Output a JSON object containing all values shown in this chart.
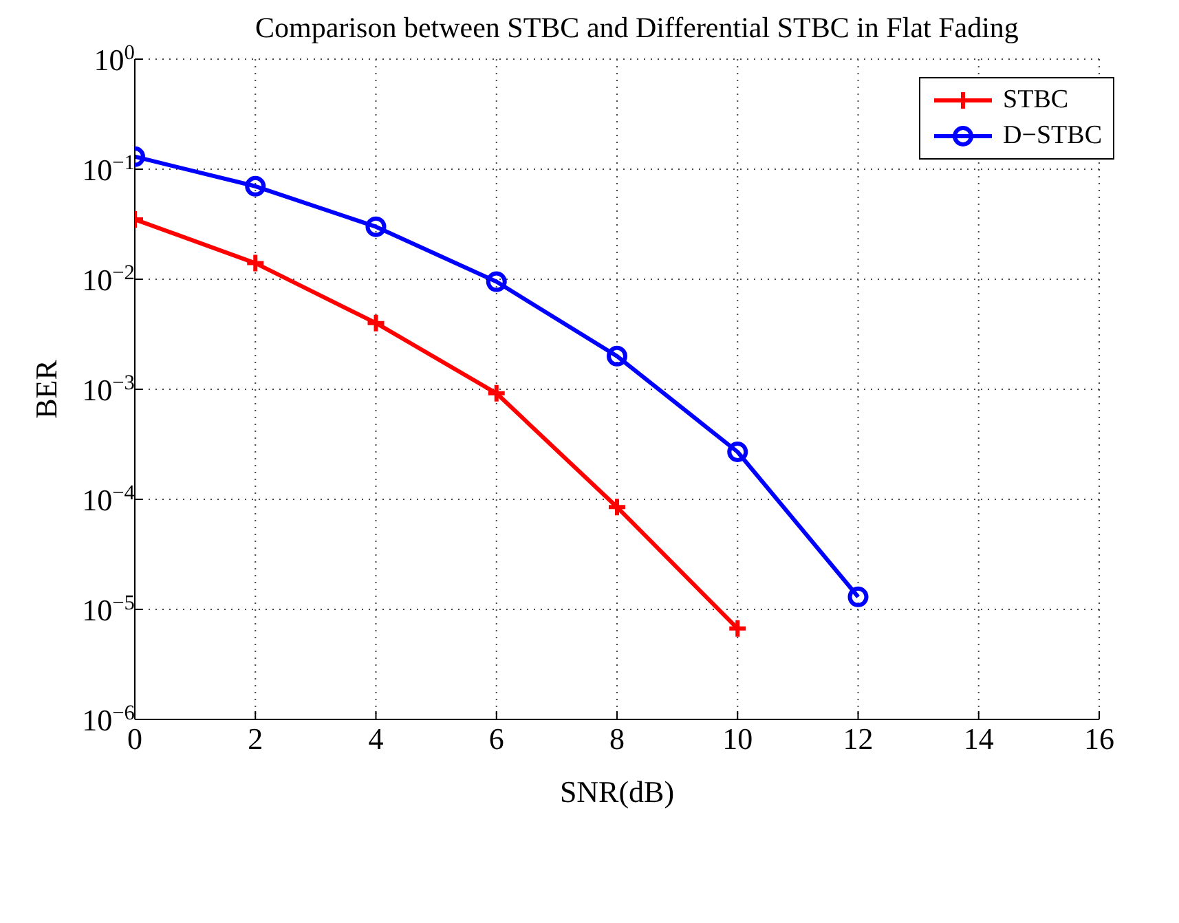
{
  "chart_data": {
    "type": "line",
    "title": "Comparison between STBC and Differential STBC in Flat Fading",
    "xlabel": "SNR(dB)",
    "ylabel": "BER",
    "x": [
      0,
      2,
      4,
      6,
      8,
      10,
      12
    ],
    "series": [
      {
        "name": "STBC",
        "color": "#ff0000",
        "marker": "cross",
        "values": [
          0.035,
          0.014,
          0.004,
          0.00092,
          8.5e-05,
          6.7e-06,
          null
        ]
      },
      {
        "name": "D−STBC",
        "color": "#0000ff",
        "marker": "circle",
        "values": [
          0.13,
          0.07,
          0.03,
          0.0095,
          0.002,
          0.00027,
          1.3e-05
        ]
      }
    ],
    "xlim": [
      0,
      16
    ],
    "xticks": [
      0,
      2,
      4,
      6,
      8,
      10,
      12,
      14,
      16
    ],
    "ylim": [
      1e-06,
      1
    ],
    "yticks": [
      {
        "value": 1e-06,
        "label": "10$^{−6}$"
      },
      {
        "value": 1e-05,
        "label": "10$^{−5}$"
      },
      {
        "value": 0.0001,
        "label": "10$^{−4}$"
      },
      {
        "value": 0.001,
        "label": "10$^{−3}$"
      },
      {
        "value": 0.01,
        "label": "10$^{−2}$"
      },
      {
        "value": 0.1,
        "label": "10$^{−1}$"
      },
      {
        "value": 1,
        "label": "10$^{0}$"
      }
    ],
    "log": "y",
    "grid": true,
    "legend": "top right",
    "line_style": "solid"
  }
}
